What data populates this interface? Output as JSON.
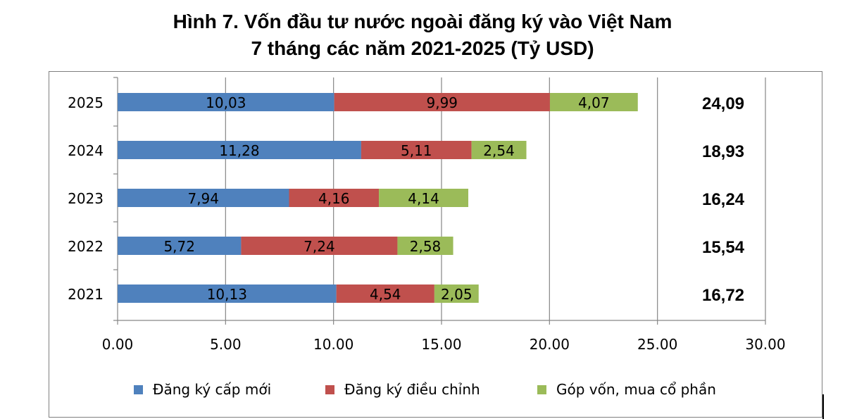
{
  "chart_data": {
    "type": "bar",
    "orientation": "horizontal",
    "stacked": true,
    "title": "Hình 7. Vốn đầu tư nước ngoài đăng ký vào Việt Nam",
    "subtitle": "7 tháng các năm 2021-2025 (Tỷ USD)",
    "xlabel": "",
    "ylabel": "",
    "categories": [
      "2025",
      "2024",
      "2023",
      "2022",
      "2021"
    ],
    "series": [
      {
        "name": "Đăng ký cấp mới",
        "color": "#4f81bd",
        "values": [
          10.03,
          11.28,
          7.94,
          5.72,
          10.13
        ],
        "labels": [
          "10,03",
          "11,28",
          "7,94",
          "5,72",
          "10,13"
        ]
      },
      {
        "name": "Đăng ký điều chỉnh",
        "color": "#c0504d",
        "values": [
          9.99,
          5.11,
          4.16,
          7.24,
          4.54
        ],
        "labels": [
          "9,99",
          "5,11",
          "4,16",
          "7,24",
          "4,54"
        ]
      },
      {
        "name": "Góp vốn, mua cổ phần",
        "color": "#9bbb59",
        "values": [
          4.07,
          2.54,
          4.14,
          2.58,
          2.05
        ],
        "labels": [
          "4,07",
          "2,54",
          "4,14",
          "2,58",
          "2,05"
        ]
      }
    ],
    "totals": [
      "24,09",
      "18,93",
      "16,24",
      "15,54",
      "16,72"
    ],
    "xlim": [
      0,
      30
    ],
    "xticks": [
      "0.00",
      "5.00",
      "10.00",
      "15.00",
      "20.00",
      "25.00",
      "30.00"
    ],
    "xtick_values": [
      0,
      5,
      10,
      15,
      20,
      25,
      30
    ],
    "grid": true,
    "legend_position": "bottom"
  }
}
